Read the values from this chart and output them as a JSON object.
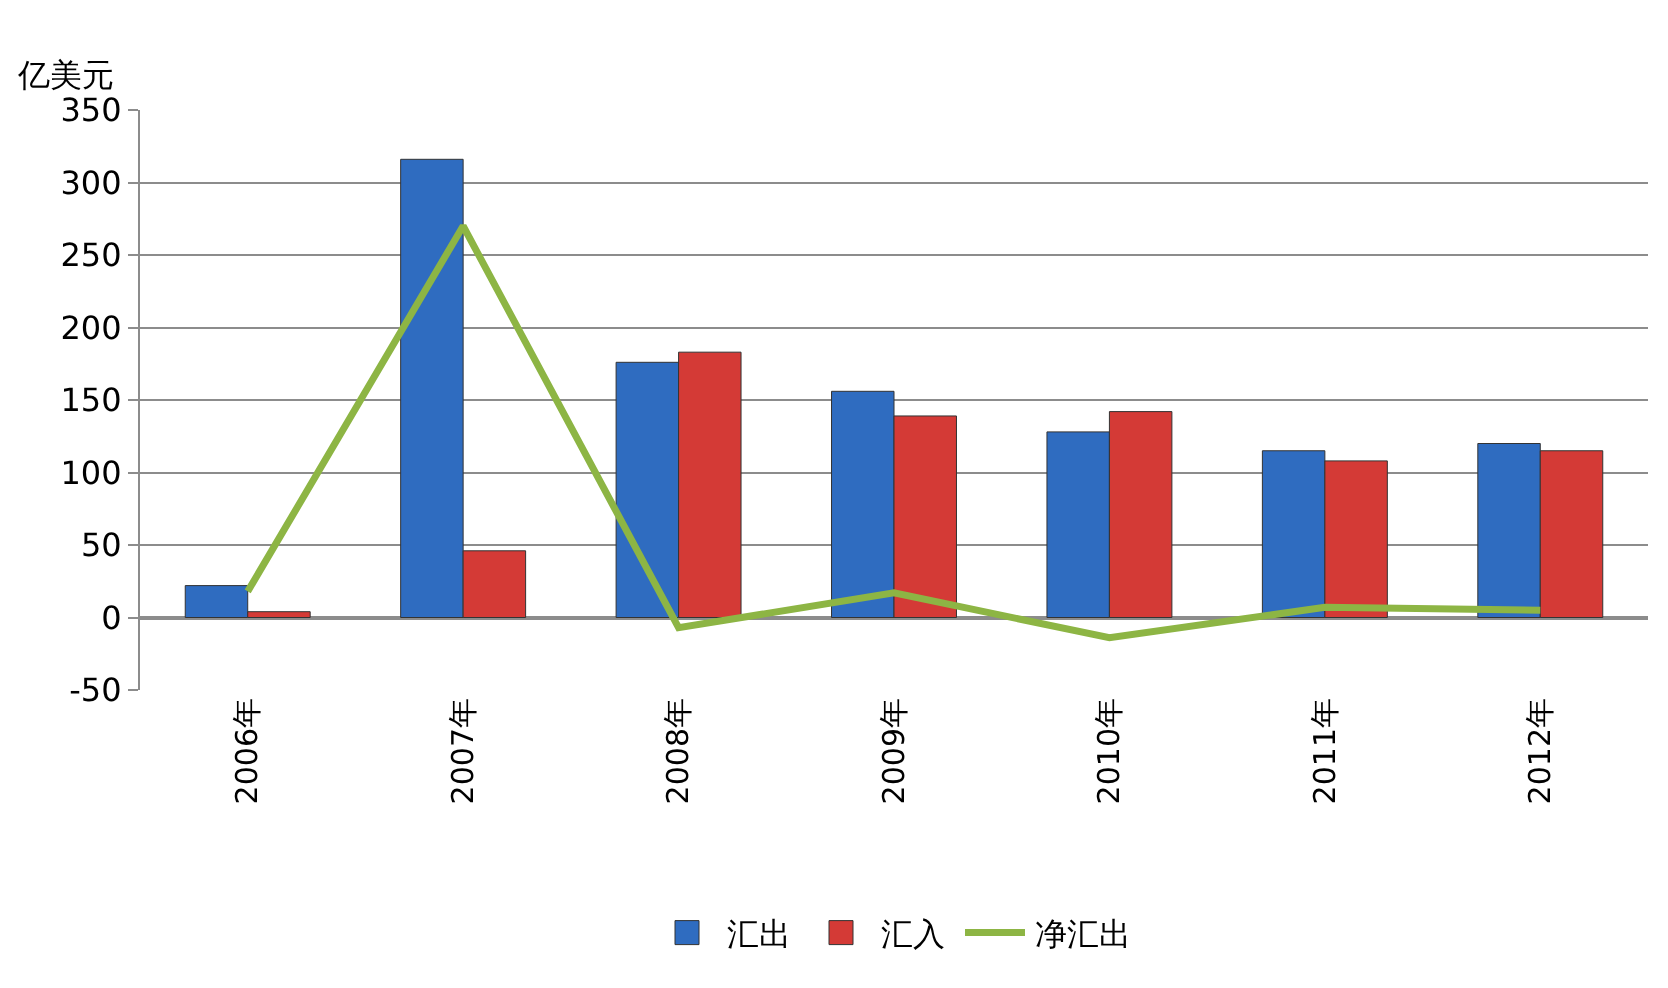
{
  "chart_data": {
    "type": "bar",
    "ylabel": "亿美元",
    "categories": [
      "2006年",
      "2007年",
      "2008年",
      "2009年",
      "2010年",
      "2011年",
      "2012年"
    ],
    "series": [
      {
        "name": "汇出",
        "color": "#2f6cc0",
        "values": [
          22,
          316,
          176,
          156,
          128,
          115,
          120
        ]
      },
      {
        "name": "汇入",
        "color": "#d43a36",
        "values": [
          4,
          46,
          183,
          139,
          142,
          108,
          115
        ]
      },
      {
        "name": "净汇出",
        "type": "line",
        "color": "#8db544",
        "values": [
          18,
          270,
          -7,
          17,
          -14,
          7,
          5
        ]
      }
    ],
    "ylim": [
      -50,
      350
    ],
    "yticks": [
      -50,
      0,
      50,
      100,
      150,
      200,
      250,
      300,
      350
    ],
    "grid": "y",
    "legend": "bottom",
    "marker": "none",
    "line_style": "solid"
  }
}
